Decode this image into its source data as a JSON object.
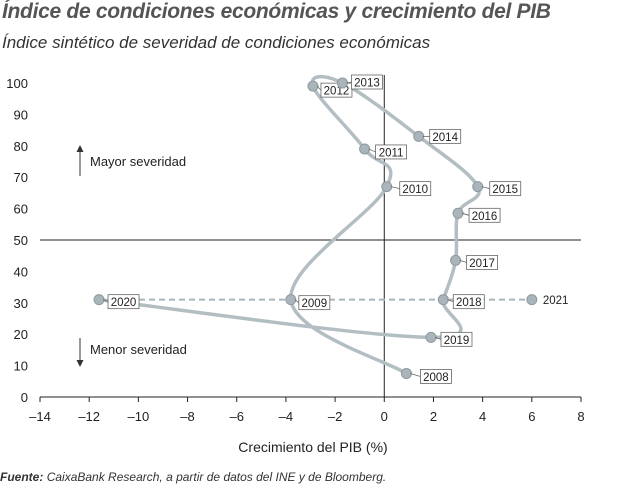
{
  "title": "Índice de condiciones económicas y crecimiento del PIB",
  "subtitle": "Índice sintético de severidad de condiciones económicas",
  "source": {
    "label": "Fuente:",
    "text": "CaixaBank Research, a partir de datos del INE y de Bloomberg."
  },
  "annotations": {
    "up": "Mayor severidad",
    "down": "Menor severidad"
  },
  "chart_data": {
    "type": "line",
    "xlabel": "Crecimiento del PIB (%)",
    "ylabel": "",
    "xlim": [
      -14,
      8
    ],
    "ylim": [
      0,
      100
    ],
    "xticks": [
      -14,
      -12,
      -10,
      -8,
      -6,
      -4,
      -2,
      0,
      2,
      4,
      6,
      8
    ],
    "yticks": [
      0,
      10,
      20,
      30,
      40,
      50,
      60,
      70,
      80,
      90,
      100
    ],
    "reference_lines": {
      "x": 0,
      "y": 50
    },
    "series": [
      {
        "points": [
          {
            "label": "2008",
            "x": 0.9,
            "y": 7.5
          },
          {
            "label": "2009",
            "x": -3.8,
            "y": 31
          },
          {
            "label": "2010",
            "x": 0.1,
            "y": 67
          },
          {
            "label": "2011",
            "x": -0.8,
            "y": 79
          },
          {
            "label": "2012",
            "x": -2.9,
            "y": 99
          },
          {
            "label": "2013",
            "x": -1.7,
            "y": 100
          },
          {
            "label": "2014",
            "x": 1.4,
            "y": 83
          },
          {
            "label": "2015",
            "x": 3.8,
            "y": 67
          },
          {
            "label": "2016",
            "x": 3.0,
            "y": 58.5
          },
          {
            "label": "2017",
            "x": 2.9,
            "y": 43.5
          },
          {
            "label": "2018",
            "x": 2.4,
            "y": 31
          },
          {
            "label": "2019",
            "x": 1.9,
            "y": 19
          },
          {
            "label": "2020",
            "x": -11.6,
            "y": 31
          }
        ]
      },
      {
        "style": "dashed",
        "points": [
          {
            "label": "2020",
            "x": -11.6,
            "y": 31
          },
          {
            "label": "2021",
            "x": 6.0,
            "y": 31
          }
        ]
      }
    ]
  }
}
